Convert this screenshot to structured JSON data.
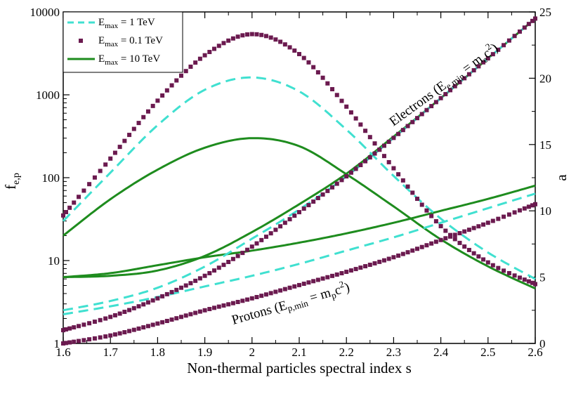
{
  "chart_data": {
    "type": "line",
    "title": "",
    "xlabel": "Non-thermal particles spectral index s",
    "ylabel_left": {
      "main": "f",
      "sub": "e,p"
    },
    "ylabel_right": "a",
    "xlim": [
      1.6,
      2.6
    ],
    "ylim_left": [
      1,
      10000
    ],
    "ylim_left_scale": "log",
    "ylim_right": [
      0,
      25
    ],
    "x_ticks": [
      "1.6",
      "1.7",
      "1.8",
      "1.9",
      "2",
      "2.1",
      "2.2",
      "2.3",
      "2.4",
      "2.5",
      "2.6"
    ],
    "y_left_ticks": [
      "1",
      "10",
      "100",
      "1000",
      "10000"
    ],
    "y_right_ticks": [
      "0",
      "5",
      "10",
      "15",
      "20",
      "25"
    ],
    "legend": {
      "position": "top-left",
      "entries": [
        {
          "name": "E_max = 1 TeV",
          "main": "E",
          "sub": "max",
          "rest": " = 1 TeV",
          "color": "#40E0D0",
          "style": "dashed"
        },
        {
          "name": "E_max = 0.1 TeV",
          "main": "E",
          "sub": "max",
          "rest": " = 0.1 TeV",
          "color": "#6B1A4F",
          "style": "squares"
        },
        {
          "name": "E_max = 10 TeV",
          "main": "E",
          "sub": "max",
          "rest": " = 10 TeV",
          "color": "#1E8C1E",
          "style": "solid"
        }
      ]
    },
    "annotations": {
      "electrons": {
        "pre": "Electrons (E",
        "sub": "e,min",
        "mid": " = m",
        "sub2": "e",
        "sup": "2",
        "post": "c",
        "close": ")"
      },
      "protons": {
        "pre": "Protons (E",
        "sub": "p,min",
        "mid": " = m",
        "sub2": "p",
        "sup": "2",
        "post": "c",
        "close": ")"
      }
    },
    "series": [
      {
        "name": "f_e, E_max = 0.1 TeV",
        "axis": "left",
        "style": "squares",
        "color": "#6B1A4F",
        "x": [
          1.6,
          1.7,
          1.8,
          1.9,
          2.0,
          2.1,
          2.2,
          2.3,
          2.4,
          2.5,
          2.6
        ],
        "y": [
          35,
          170,
          850,
          3000,
          5400,
          3100,
          720,
          130,
          26,
          9.5,
          5.2
        ]
      },
      {
        "name": "f_e, E_max = 1 TeV",
        "axis": "left",
        "style": "dashed",
        "color": "#40E0D0",
        "x": [
          1.6,
          1.7,
          1.8,
          1.9,
          2.0,
          2.1,
          2.2,
          2.3,
          2.4,
          2.5,
          2.6
        ],
        "y": [
          30,
          115,
          430,
          1150,
          1620,
          1100,
          380,
          105,
          32,
          12.5,
          6.0
        ]
      },
      {
        "name": "f_e, E_max = 10 TeV",
        "axis": "left",
        "style": "solid",
        "color": "#1E8C1E",
        "x": [
          1.6,
          1.7,
          1.8,
          1.9,
          2.0,
          2.1,
          2.2,
          2.3,
          2.4,
          2.5,
          2.6
        ],
        "y": [
          20,
          55,
          125,
          230,
          300,
          240,
          110,
          45,
          18,
          8.5,
          4.6
        ]
      },
      {
        "name": "a_e, E_max = 0.1 TeV",
        "axis": "right",
        "style": "squares",
        "color": "#6B1A4F",
        "x": [
          1.6,
          1.7,
          1.8,
          1.9,
          2.0,
          2.1,
          2.2,
          2.3,
          2.4,
          2.5,
          2.6
        ],
        "y": [
          1.0,
          2.0,
          3.4,
          5.1,
          7.3,
          9.9,
          12.6,
          15.5,
          18.5,
          21.5,
          24.5
        ]
      },
      {
        "name": "a_e, E_max = 1 TeV",
        "axis": "right",
        "style": "dashed",
        "color": "#40E0D0",
        "x": [
          1.6,
          1.7,
          1.8,
          1.9,
          2.0,
          2.1,
          2.2,
          2.3,
          2.4,
          2.5,
          2.6
        ],
        "y": [
          2.5,
          3.2,
          4.2,
          5.8,
          7.9,
          10.1,
          12.6,
          15.5,
          18.5,
          21.5,
          24.5
        ]
      },
      {
        "name": "a_e, E_max = 10 TeV",
        "axis": "right",
        "style": "solid",
        "color": "#1E8C1E",
        "x": [
          1.6,
          1.7,
          1.8,
          1.9,
          2.0,
          2.1,
          2.2,
          2.3,
          2.4,
          2.5,
          2.6
        ],
        "y": [
          5.0,
          5.1,
          5.5,
          6.6,
          8.4,
          10.5,
          12.8,
          15.6,
          18.5,
          21.5,
          24.5
        ]
      },
      {
        "name": "a_p, E_max = 0.1 TeV",
        "axis": "right",
        "style": "squares",
        "color": "#6B1A4F",
        "x": [
          1.6,
          1.7,
          1.8,
          1.9,
          2.0,
          2.1,
          2.2,
          2.3,
          2.4,
          2.5,
          2.6
        ],
        "y": [
          0.0,
          0.6,
          1.5,
          2.5,
          3.4,
          4.4,
          5.4,
          6.5,
          7.8,
          9.1,
          10.5
        ]
      },
      {
        "name": "a_p, E_max = 1 TeV",
        "axis": "right",
        "style": "dashed",
        "color": "#40E0D0",
        "x": [
          1.6,
          1.7,
          1.8,
          1.9,
          2.0,
          2.1,
          2.2,
          2.3,
          2.4,
          2.5,
          2.6
        ],
        "y": [
          2.2,
          2.8,
          3.5,
          4.3,
          5.1,
          6.0,
          7.0,
          8.0,
          9.1,
          10.2,
          11.3
        ]
      },
      {
        "name": "a_p, E_max = 10 TeV",
        "axis": "right",
        "style": "solid",
        "color": "#1E8C1E",
        "x": [
          1.6,
          1.7,
          1.8,
          1.9,
          2.0,
          2.1,
          2.2,
          2.3,
          2.4,
          2.5,
          2.6
        ],
        "y": [
          5.0,
          5.3,
          5.9,
          6.5,
          7.0,
          7.6,
          8.3,
          9.1,
          10.0,
          10.9,
          11.9
        ]
      }
    ]
  }
}
